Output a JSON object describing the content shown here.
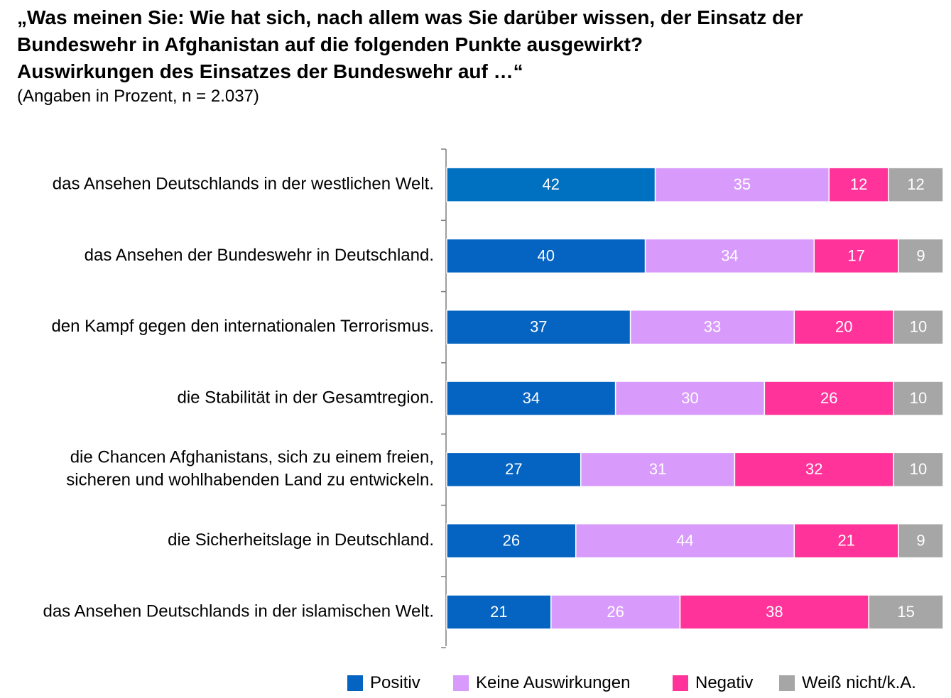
{
  "title": {
    "line1": "„Was meinen Sie: Wie hat sich, nach allem was Sie darüber wissen, der Einsatz der",
    "line2": "Bundeswehr in Afghanistan auf die folgenden Punkte ausgewirkt?",
    "line3": "Auswirkungen des Einsatzes der Bundeswehr auf …“",
    "subtitle": "(Angaben in Prozent, n = 2.037)"
  },
  "chart_data": {
    "type": "bar",
    "orientation": "horizontal",
    "stacked": true,
    "title": "„Was meinen Sie: Wie hat sich, nach allem was Sie darüber wissen, der Einsatz der Bundeswehr in Afghanistan auf die folgenden Punkte ausgewirkt? Auswirkungen des Einsatzes der Bundeswehr auf …“",
    "subtitle": "(Angaben in Prozent, n = 2.037)",
    "xlabel": "",
    "ylabel": "",
    "categories": [
      [
        "das Ansehen Deutschlands in der westlichen Welt."
      ],
      [
        "das Ansehen der Bundeswehr in Deutschland."
      ],
      [
        "den Kampf gegen den internationalen Terrorismus."
      ],
      [
        "die Stabilität in der Gesamtregion."
      ],
      [
        "die Chancen Afghanistans, sich zu einem freien,",
        "sicheren und wohlhabenden Land zu entwickeln."
      ],
      [
        "die Sicherheitslage in Deutschland."
      ],
      [
        "das Ansehen Deutschlands in der islamischen Welt."
      ]
    ],
    "series": [
      {
        "name": "Positiv",
        "color": "#0563C1",
        "values": [
          42,
          40,
          37,
          34,
          27,
          26,
          21
        ]
      },
      {
        "name": "Keine Auswirkungen",
        "color": "#D89BFB",
        "values": [
          35,
          34,
          33,
          30,
          31,
          44,
          26
        ]
      },
      {
        "name": "Negativ",
        "color": "#FF3399",
        "values": [
          12,
          17,
          20,
          26,
          32,
          21,
          38
        ]
      },
      {
        "name": "Weiß nicht/k.A.",
        "color": "#A6A6A6",
        "values": [
          12,
          9,
          10,
          10,
          10,
          9,
          15
        ]
      }
    ],
    "first_bar_color": "#0070C0",
    "xlim": [
      0,
      100
    ],
    "legend_position": "bottom"
  }
}
